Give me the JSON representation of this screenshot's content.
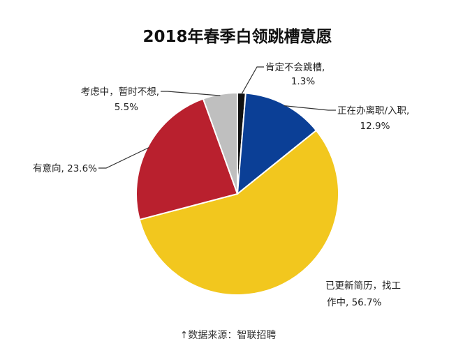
{
  "chart_data": {
    "type": "pie",
    "title": "2018年春季白领跳槽意愿",
    "slices": [
      {
        "label_lines": [
          "肯定不会跳槽,",
          "1.3%"
        ],
        "value": 1.3,
        "color": "#111111"
      },
      {
        "label_lines": [
          "正在办离职/入职,",
          "12.9%"
        ],
        "value": 12.9,
        "color": "#0b3f96"
      },
      {
        "label_lines": [
          "已更新简历，找工",
          "作中, 56.7%"
        ],
        "value": 56.7,
        "color": "#f2c71e"
      },
      {
        "label_lines": [
          "有意向, 23.6%"
        ],
        "value": 23.6,
        "color": "#b9202e"
      },
      {
        "label_lines": [
          "考虑中，暂时不想,",
          "5.5%"
        ],
        "value": 5.5,
        "color": "#bfbfbf"
      }
    ]
  },
  "source": "↑数据来源：智联招聘"
}
